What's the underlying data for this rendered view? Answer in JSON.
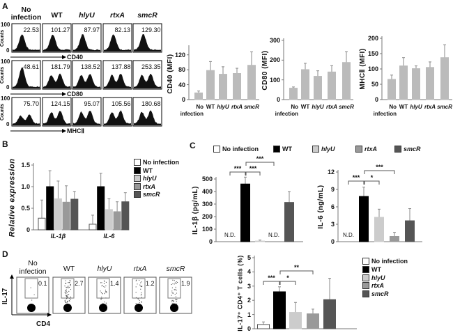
{
  "panels": {
    "a": "A",
    "b": "B",
    "c": "C",
    "d": "D"
  },
  "groups": [
    "No infection",
    "WT",
    "hlyU",
    "rtxA",
    "smcR"
  ],
  "group_colors": [
    "#ffffff",
    "#000000",
    "#cccccc",
    "#999999",
    "#555555"
  ],
  "panel_a": {
    "y_label": "Counts",
    "y_ticks": [
      "100",
      "0"
    ],
    "rows": [
      {
        "marker": "CD40",
        "values": [
          "22.53",
          "101.27",
          "87.97",
          "82.13",
          "129.30"
        ]
      },
      {
        "marker": "CD80",
        "values": [
          "48.61",
          "181.79",
          "138.52",
          "137.88",
          "253.35"
        ]
      },
      {
        "marker": "MHCⅡ",
        "values": [
          "75.70",
          "124.15",
          "95.07",
          "105.56",
          "180.68"
        ]
      }
    ]
  },
  "panel_d_flow": {
    "y_label": "IL-17",
    "x_label": "CD4",
    "values": [
      "0.1",
      "2.7",
      "1.4",
      "1.2",
      "1.9"
    ]
  },
  "chart_data": [
    {
      "type": "bar",
      "ylabel": "CD40 (MFI)",
      "ylim": [
        0,
        140
      ],
      "yticks": [
        0,
        40,
        80,
        120
      ],
      "categories": [
        "No infection",
        "WT",
        "hlyU",
        "rtxA",
        "smcR"
      ],
      "values": [
        18,
        78,
        68,
        70,
        92
      ],
      "errors": [
        5,
        24,
        20,
        14,
        36
      ]
    },
    {
      "type": "bar",
      "ylabel": "CD80 (MFI)",
      "ylim": [
        0,
        300
      ],
      "yticks": [
        0,
        100,
        200,
        300
      ],
      "categories": [
        "No infection",
        "WT",
        "hlyU",
        "rtxA",
        "smcR"
      ],
      "values": [
        58,
        152,
        118,
        140,
        188
      ],
      "errors": [
        6,
        32,
        28,
        32,
        55
      ]
    },
    {
      "type": "bar",
      "ylabel": "MHCⅡ (MFI)",
      "ylim": [
        0,
        200
      ],
      "yticks": [
        0,
        50,
        100,
        150,
        200
      ],
      "categories": [
        "No infection",
        "WT",
        "hlyU",
        "rtxA",
        "smcR"
      ],
      "values": [
        66,
        110,
        101,
        105,
        137
      ],
      "errors": [
        14,
        27,
        9,
        18,
        42
      ]
    },
    {
      "type": "bar",
      "ylabel": "Relative expression",
      "ylim": [
        0,
        1.5
      ],
      "yticks": [
        "0",
        "0.5",
        "1.0",
        "1.5"
      ],
      "categories": [
        "IL-1β",
        "IL-6"
      ],
      "series": [
        {
          "name": "No infection",
          "values": [
            0.27,
            0.13
          ],
          "errors": [
            0.42,
            0.21
          ]
        },
        {
          "name": "WT",
          "values": [
            1.0,
            1.0
          ],
          "errors": [
            0.37,
            0.31
          ]
        },
        {
          "name": "hlyU",
          "values": [
            0.72,
            0.47
          ],
          "errors": [
            0.41,
            0.25
          ]
        },
        {
          "name": "rtxA",
          "values": [
            0.64,
            0.42
          ],
          "errors": [
            0.38,
            0.23
          ]
        },
        {
          "name": "smcR",
          "values": [
            0.71,
            0.65
          ],
          "errors": [
            0.18,
            0.21
          ]
        }
      ]
    },
    {
      "type": "bar",
      "ylabel": "IL-1β (pg/mL)",
      "ylim": [
        0,
        500
      ],
      "yticks": [
        0,
        100,
        200,
        300,
        400,
        500
      ],
      "categories": [
        "No infection",
        "WT",
        "hlyU",
        "rtxA",
        "smcR"
      ],
      "values": [
        0,
        460,
        5,
        0,
        313
      ],
      "errors": [
        0,
        55,
        8,
        0,
        87
      ],
      "annotations": [
        "N.D.",
        "",
        "",
        "N.D.",
        ""
      ],
      "significance": [
        {
          "from": 0,
          "to": 1,
          "label": "***"
        },
        {
          "from": 1,
          "to": 2,
          "label": "***"
        },
        {
          "from": 1,
          "to": 3,
          "label": "***"
        }
      ]
    },
    {
      "type": "bar",
      "ylabel": "IL-6 (ng/mL)",
      "ylim": [
        0,
        12
      ],
      "yticks": [
        0,
        3,
        6,
        9,
        12
      ],
      "categories": [
        "No infection",
        "WT",
        "hlyU",
        "rtxA",
        "smcR"
      ],
      "values": [
        0,
        7.8,
        4.2,
        0.9,
        3.6
      ],
      "errors": [
        0,
        1.6,
        1.4,
        0.7,
        2.1
      ],
      "annotations": [
        "N.D.",
        "",
        "",
        "",
        ""
      ],
      "significance": [
        {
          "from": 0,
          "to": 1,
          "label": "***"
        },
        {
          "from": 1,
          "to": 2,
          "label": "*"
        },
        {
          "from": 1,
          "to": 3,
          "label": "***"
        }
      ]
    },
    {
      "type": "bar",
      "ylabel": "IL-17⁺ CD4⁺ T cells (%)",
      "ylim": [
        0,
        5
      ],
      "yticks": [
        0,
        1,
        2,
        3,
        4,
        5
      ],
      "categories": [
        "No infection",
        "WT",
        "hlyU",
        "rtxA",
        "smcR"
      ],
      "values": [
        0.3,
        2.6,
        1.15,
        1.05,
        2.05
      ],
      "errors": [
        0.18,
        0.35,
        0.7,
        0.33,
        1.5
      ],
      "significance": [
        {
          "from": 0,
          "to": 1,
          "label": "***"
        },
        {
          "from": 1,
          "to": 2,
          "label": "*"
        },
        {
          "from": 1,
          "to": 3,
          "label": "**"
        }
      ]
    }
  ]
}
